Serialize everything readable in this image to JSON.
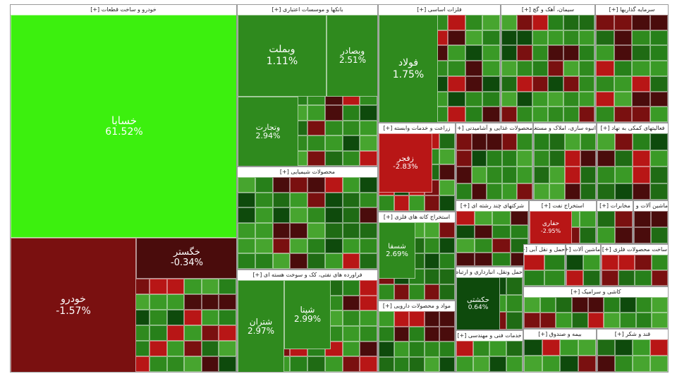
{
  "colors": {
    "strong_up": "#3cf00e",
    "up": "#2f8a1e",
    "up_dark": "#1f6b14",
    "green_deep": "#0e4a0c",
    "down": "#b81616",
    "down_dark": "#7a1010",
    "down_deep": "#4a0c0c"
  },
  "chart_data": {
    "type": "treemap",
    "groups": [
      {
        "id": "g1",
        "label": "خودرو و ساخت قطعات [+]",
        "color": "up",
        "major": true
      },
      {
        "id": "g2",
        "label": "بانکها و موسسات اعتباری [+]",
        "color": "up",
        "major": true
      },
      {
        "id": "g3",
        "label": "فلزات اساسی [+]",
        "color": "up",
        "major": true
      },
      {
        "id": "g4",
        "label": "سیمان، آهک و گچ [+]",
        "color": "up",
        "major": true
      },
      {
        "id": "g5",
        "label": "سرمایه گذاریها [+]",
        "color": "up",
        "major": true
      },
      {
        "id": "g6",
        "label": "محصولات شیمیایی [+]",
        "color": "up",
        "major": true
      },
      {
        "id": "g7",
        "label": "زراعت و خدمات وابسته [+]",
        "color": "down",
        "major": false
      },
      {
        "id": "g8",
        "label": "محصولات غذایی و آشامیدنی [+]",
        "color": "up",
        "major": false
      },
      {
        "id": "g9",
        "label": "انبوه سازی، املاک و مستغلات [+]",
        "color": "up",
        "major": false
      },
      {
        "id": "g10",
        "label": "فعالیتهای کمکی به نهاد [+]",
        "color": "up",
        "major": false
      },
      {
        "id": "g11",
        "label": "استخراج کانه های فلزی [+]",
        "color": "down",
        "major": false
      },
      {
        "id": "g12",
        "label": "شرکتهای چند رشته ای [+]",
        "color": "up",
        "major": false
      },
      {
        "id": "g13",
        "label": "استخراج نفت [+]",
        "color": "down",
        "major": false
      },
      {
        "id": "g14",
        "label": "مخابرات [+]",
        "color": "up",
        "major": false
      },
      {
        "id": "g15",
        "label": "ماشین آلات و دستگاه [+]",
        "color": "up",
        "major": false
      },
      {
        "id": "g16",
        "label": "فراورده های نفتی، کک و سوخت هسته ای [+]",
        "color": "up",
        "major": true
      },
      {
        "id": "g17",
        "label": "حمل ونقل، انبارداری و ارتباطات [+]",
        "color": "up",
        "major": false
      },
      {
        "id": "g18",
        "label": "مواد و محصولات دارویی [+]",
        "color": "up",
        "major": false
      },
      {
        "id": "g19",
        "label": "خدمات فنی و مهندسی [+]",
        "color": "up",
        "major": false
      },
      {
        "id": "g20",
        "label": "حمل و نقل آبی [+]",
        "color": "up",
        "major": false
      },
      {
        "id": "g21",
        "label": "ماشین آلات [+]",
        "color": "up",
        "major": false
      },
      {
        "id": "g22",
        "label": "ساخت محصولات فلزی [+]",
        "color": "up",
        "major": false
      },
      {
        "id": "g23",
        "label": "کاشی و سرامیک [+]",
        "color": "up",
        "major": false
      },
      {
        "id": "g24",
        "label": "بیمه و صندوق [+]",
        "color": "up",
        "major": false
      },
      {
        "id": "g25",
        "label": "قند و شکر [+]",
        "color": "up",
        "major": false
      }
    ],
    "stocks": [
      {
        "group": "g1",
        "name": "خسابا",
        "change": "61.52%",
        "color": "strong_up"
      },
      {
        "group": "g1",
        "name": "خودرو",
        "change": "-1.57%",
        "color": "down_dark"
      },
      {
        "group": "g1",
        "name": "خگستر",
        "change": "-0.34%",
        "color": "down_deep"
      },
      {
        "group": "g2",
        "name": "وبملت",
        "change": "1.11%",
        "color": "up"
      },
      {
        "group": "g2",
        "name": "وبصادر",
        "change": "2.51%",
        "color": "up"
      },
      {
        "group": "g2",
        "name": "وتجارت",
        "change": "2.94%",
        "color": "up"
      },
      {
        "group": "g3",
        "name": "فولاد",
        "change": "1.75%",
        "color": "up"
      },
      {
        "group": "g7",
        "name": "زفجر",
        "change": "-2.83%",
        "color": "down"
      },
      {
        "group": "g11",
        "name": "شسفا",
        "change": "2.69%",
        "color": "up"
      },
      {
        "group": "g13",
        "name": "حفاری",
        "change": "-2.95%",
        "color": "down"
      },
      {
        "group": "g16",
        "name": "شتران",
        "change": "2.97%",
        "color": "up"
      },
      {
        "group": "g16",
        "name": "شپنا",
        "change": "2.99%",
        "color": "up"
      },
      {
        "group": "g17",
        "name": "حکشتی",
        "change": "0.64%",
        "color": "green_deep"
      }
    ]
  }
}
